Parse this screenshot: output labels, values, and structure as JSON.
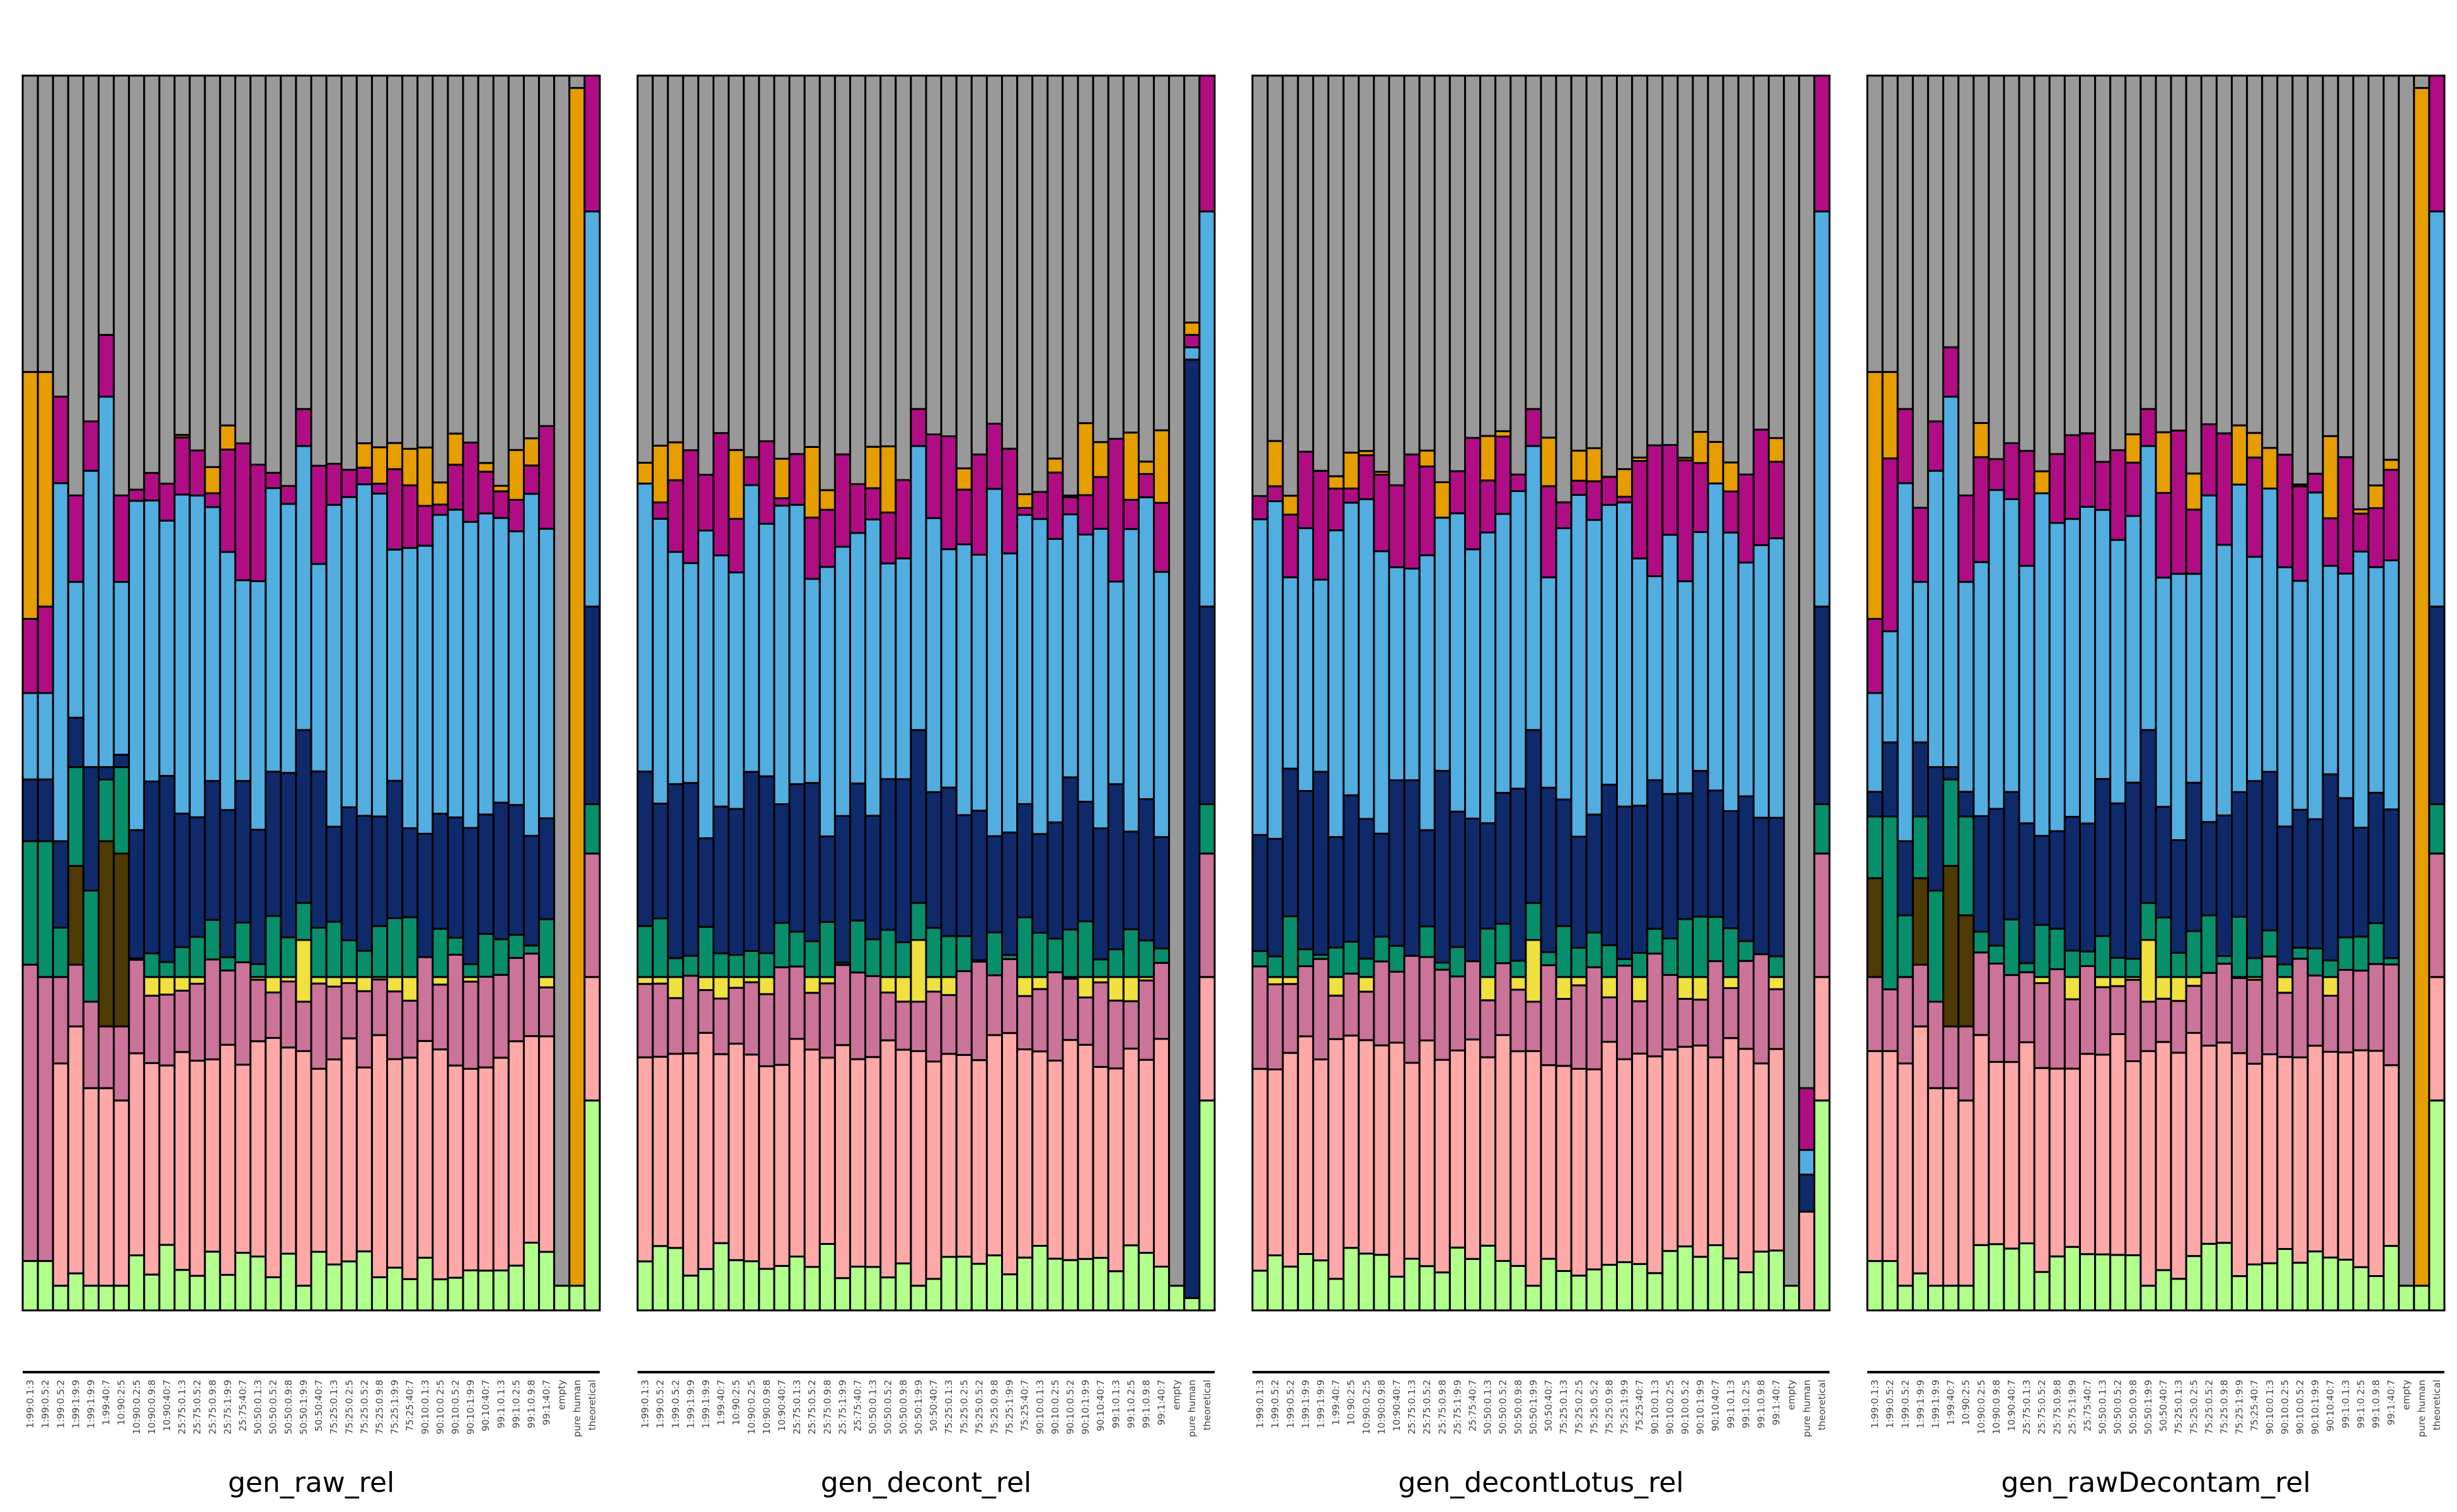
{
  "chart_data": [
    {
      "type": "bar",
      "stacked": true,
      "normalized": true,
      "xlabel": "gen_raw_rel",
      "categories": [
        "1:99:0.1:3",
        "1:99:0.5:2",
        "1:99:0.5:2",
        "1:99:1:9:9",
        "1:99:1:9:9",
        "1:99:40:7",
        "10:90:2:5",
        "10:90:0.2:5",
        "10:90:0.9:8",
        "10:90:40:7",
        "25:75:0.1:3",
        "25:75:0.5:2",
        "25:75:0.9:8",
        "25:75:1:9:9",
        "25:75:40:7",
        "50:50:0.1:3",
        "50:50:0.5:2",
        "50:50:0.9:8",
        "50:50:1:9:9",
        "50:50:40:7",
        "75:25:0.1:3",
        "75:25:0.2:5",
        "75:25:0.5:2",
        "75:25:0.9:8",
        "75:25:1:9:9",
        "75:25:40:7",
        "90:10:0.1:3",
        "90:10:0.2:5",
        "90:10:0.5:2",
        "90:10:1:9:9",
        "90:10:40:7",
        "99:1:0.1:3",
        "99:1:0.2:5",
        "99:1:0.9:8",
        "99:1:40:7",
        "empty",
        "pure human",
        "theoretical"
      ],
      "series_colors": [
        "#B3FF8C",
        "#FFA8A8",
        "#CC7399",
        "#F0E040",
        "#4D3A04",
        "#078F6B",
        "#0E2A6B",
        "#52AEE0",
        "#B00D85",
        "#E69D00",
        "#999999"
      ],
      "ylim": [
        0,
        1
      ]
    },
    {
      "type": "bar",
      "stacked": true,
      "normalized": true,
      "xlabel": "gen_decont_rel",
      "categories": [
        "1:99:0.1:3",
        "1:99:0.5:2",
        "1:99:0.5:2",
        "1:99:1:9:9",
        "1:99:1:9:9",
        "1:99:40:7",
        "10:90:2:5",
        "10:90:0.2:5",
        "10:90:0.9:8",
        "10:90:40:7",
        "25:75:0.1:3",
        "25:75:0.5:2",
        "25:75:0.9:8",
        "25:75:1:9:9",
        "25:75:40:7",
        "50:50:0.1:3",
        "50:50:0.5:2",
        "50:50:0.9:8",
        "50:50:1:9:9",
        "50:50:40:7",
        "75:25:0.1:3",
        "75:25:0.2:5",
        "75:25:0.5:2",
        "75:25:0.9:8",
        "75:25:1:9:9",
        "75:25:40:7",
        "90:10:0.1:3",
        "90:10:0.2:5",
        "90:10:0.5:2",
        "90:10:1:9:9",
        "90:10:40:7",
        "99:1:0.1:3",
        "99:1:0.2:5",
        "99:1:0.9:8",
        "99:1:40:7",
        "empty",
        "pure human",
        "theoretical"
      ],
      "ylim": [
        0,
        1
      ]
    },
    {
      "type": "bar",
      "stacked": true,
      "normalized": true,
      "xlabel": "gen_decontLotus_rel",
      "categories": [
        "1:99:0.1:3",
        "1:99:0.5:2",
        "1:99:0.5:2",
        "1:99:1:9:9",
        "1:99:1:9:9",
        "1:99:40:7",
        "10:90:2:5",
        "10:90:0.2:5",
        "10:90:0.9:8",
        "10:90:40:7",
        "25:75:0.1:3",
        "25:75:0.5:2",
        "25:75:0.9:8",
        "25:75:1:9:9",
        "25:75:40:7",
        "50:50:0.1:3",
        "50:50:0.5:2",
        "50:50:0.9:8",
        "50:50:1:9:9",
        "50:50:40:7",
        "75:25:0.1:3",
        "75:25:0.2:5",
        "75:25:0.5:2",
        "75:25:0.9:8",
        "75:25:1:9:9",
        "75:25:40:7",
        "90:10:0.1:3",
        "90:10:0.2:5",
        "90:10:0.5:2",
        "90:10:1:9:9",
        "90:10:40:7",
        "99:1:0.1:3",
        "99:1:0.2:5",
        "99:1:0.9:8",
        "99:1:40:7",
        "empty",
        "pure human",
        "theoretical"
      ],
      "ylim": [
        0,
        1
      ]
    },
    {
      "type": "bar",
      "stacked": true,
      "normalized": true,
      "xlabel": "gen_rawDecontam_rel",
      "categories": [
        "1:99:0.1:3",
        "1:99:0.5:2",
        "1:99:0.5:2",
        "1:99:1:9:9",
        "1:99:1:9:9",
        "1:99:40:7",
        "10:90:2:5",
        "10:90:0.2:5",
        "10:90:0.9:8",
        "10:90:40:7",
        "25:75:0.1:3",
        "25:75:0.5:2",
        "25:75:0.9:8",
        "25:75:1:9:9",
        "25:75:40:7",
        "50:50:0.1:3",
        "50:50:0.5:2",
        "50:50:0.9:8",
        "50:50:1:9:9",
        "50:50:40:7",
        "75:25:0.1:3",
        "75:25:0.2:5",
        "75:25:0.5:2",
        "75:25:0.9:8",
        "75:25:1:9:9",
        "75:25:40:7",
        "90:10:0.1:3",
        "90:10:0.2:5",
        "90:10:0.5:2",
        "90:10:1:9:9",
        "90:10:40:7",
        "99:1:0.1:3",
        "99:1:0.2:5",
        "99:1:0.9:8",
        "99:1:40:7",
        "empty",
        "pure human",
        "theoretical"
      ],
      "ylim": [
        0,
        1
      ]
    }
  ],
  "panel_cuts": [
    {
      "typical_bounds": [
        0.04,
        0.21,
        0.27,
        0.27,
        0.27,
        0.3,
        0.41,
        0.63,
        0.68,
        0.68
      ],
      "bound_variation": [
        0.015,
        0.015,
        0.02,
        0.0,
        0.0,
        0.02,
        0.03,
        0.04,
        0.04,
        0.04
      ],
      "overrides": {
        "0": [
          0.04,
          0.04,
          0.28,
          0.28,
          0.28,
          0.38,
          0.43,
          0.5,
          0.56,
          0.76
        ],
        "1": [
          0.04,
          0.04,
          0.27,
          0.27,
          0.27,
          0.38,
          0.43,
          0.5,
          0.57,
          0.76
        ],
        "2": [
          0.02,
          0.2,
          0.27,
          0.27,
          0.27,
          0.31,
          0.38,
          0.67,
          0.74,
          0.74
        ],
        "3": [
          0.03,
          0.23,
          0.28,
          0.28,
          0.36,
          0.44,
          0.48,
          0.59,
          0.66,
          0.66
        ],
        "4": [
          0.02,
          0.18,
          0.25,
          0.25,
          0.25,
          0.34,
          0.44,
          0.68,
          0.72,
          0.72
        ],
        "5": [
          0.02,
          0.18,
          0.23,
          0.23,
          0.38,
          0.43,
          0.44,
          0.74,
          0.79,
          0.79
        ],
        "6": [
          0.02,
          0.17,
          0.23,
          0.23,
          0.37,
          0.44,
          0.45,
          0.59,
          0.66,
          0.66
        ],
        "18": [
          0.02,
          0.21,
          0.25,
          0.3,
          0.3,
          0.33,
          0.47,
          0.7,
          0.73,
          0.73
        ],
        "35": [
          0.02,
          0.02,
          0.02,
          0.02,
          0.02,
          0.02,
          0.02,
          0.02,
          0.02,
          0.02
        ],
        "36": [
          0.02,
          0.02,
          0.02,
          0.02,
          0.02,
          0.02,
          0.02,
          0.02,
          0.02,
          0.99
        ],
        "37": [
          0.17,
          0.27,
          0.37,
          0.37,
          0.37,
          0.41,
          0.57,
          0.89,
          1.0,
          1.0
        ]
      }
    },
    {
      "typical_bounds": [
        0.04,
        0.21,
        0.27,
        0.27,
        0.27,
        0.3,
        0.41,
        0.63,
        0.68,
        0.68
      ],
      "bound_variation": [
        0.015,
        0.015,
        0.02,
        0.0,
        0.0,
        0.02,
        0.03,
        0.04,
        0.04,
        0.04
      ],
      "overrides": {
        "18": [
          0.02,
          0.21,
          0.25,
          0.3,
          0.3,
          0.33,
          0.47,
          0.7,
          0.73,
          0.73
        ],
        "35": [
          0.02,
          0.02,
          0.02,
          0.02,
          0.02,
          0.02,
          0.02,
          0.02,
          0.02,
          0.02
        ],
        "36": [
          0.01,
          0.01,
          0.01,
          0.01,
          0.01,
          0.01,
          0.77,
          0.78,
          0.79,
          0.8
        ],
        "37": [
          0.17,
          0.27,
          0.37,
          0.37,
          0.37,
          0.41,
          0.57,
          0.89,
          1.0,
          1.0
        ]
      }
    },
    {
      "typical_bounds": [
        0.04,
        0.21,
        0.27,
        0.27,
        0.27,
        0.3,
        0.41,
        0.63,
        0.68,
        0.68
      ],
      "bound_variation": [
        0.015,
        0.015,
        0.02,
        0.0,
        0.0,
        0.02,
        0.03,
        0.04,
        0.04,
        0.04
      ],
      "overrides": {
        "18": [
          0.02,
          0.21,
          0.25,
          0.3,
          0.3,
          0.33,
          0.47,
          0.7,
          0.73,
          0.73
        ],
        "35": [
          0.02,
          0.02,
          0.02,
          0.02,
          0.02,
          0.02,
          0.02,
          0.02,
          0.02,
          0.02
        ],
        "36": [
          0.0,
          0.08,
          0.08,
          0.08,
          0.08,
          0.08,
          0.11,
          0.13,
          0.18,
          0.18
        ],
        "37": [
          0.17,
          0.27,
          0.37,
          0.37,
          0.37,
          0.41,
          0.57,
          0.89,
          1.0,
          1.0
        ]
      }
    },
    {
      "typical_bounds": [
        0.04,
        0.21,
        0.27,
        0.27,
        0.27,
        0.3,
        0.41,
        0.63,
        0.68,
        0.68
      ],
      "bound_variation": [
        0.015,
        0.015,
        0.02,
        0.0,
        0.0,
        0.02,
        0.03,
        0.04,
        0.04,
        0.04
      ],
      "overrides": {
        "0": [
          0.04,
          0.21,
          0.27,
          0.27,
          0.35,
          0.4,
          0.42,
          0.5,
          0.56,
          0.76
        ],
        "1": [
          0.04,
          0.21,
          0.26,
          0.26,
          0.26,
          0.4,
          0.46,
          0.55,
          0.69,
          0.76
        ],
        "2": [
          0.02,
          0.2,
          0.27,
          0.27,
          0.27,
          0.32,
          0.38,
          0.67,
          0.73,
          0.73
        ],
        "3": [
          0.03,
          0.23,
          0.28,
          0.28,
          0.35,
          0.4,
          0.46,
          0.59,
          0.65,
          0.65
        ],
        "4": [
          0.02,
          0.18,
          0.25,
          0.25,
          0.25,
          0.34,
          0.44,
          0.68,
          0.72,
          0.72
        ],
        "5": [
          0.02,
          0.18,
          0.23,
          0.23,
          0.36,
          0.43,
          0.44,
          0.74,
          0.78,
          0.78
        ],
        "6": [
          0.02,
          0.17,
          0.23,
          0.23,
          0.32,
          0.4,
          0.42,
          0.59,
          0.66,
          0.66
        ],
        "18": [
          0.02,
          0.21,
          0.25,
          0.3,
          0.3,
          0.33,
          0.47,
          0.7,
          0.73,
          0.73
        ],
        "35": [
          0.02,
          0.02,
          0.02,
          0.02,
          0.02,
          0.02,
          0.02,
          0.02,
          0.02,
          0.02
        ],
        "36": [
          0.02,
          0.02,
          0.02,
          0.02,
          0.02,
          0.02,
          0.02,
          0.02,
          0.02,
          0.99
        ],
        "37": [
          0.17,
          0.27,
          0.37,
          0.37,
          0.37,
          0.41,
          0.57,
          0.89,
          1.0,
          1.0
        ]
      }
    }
  ]
}
